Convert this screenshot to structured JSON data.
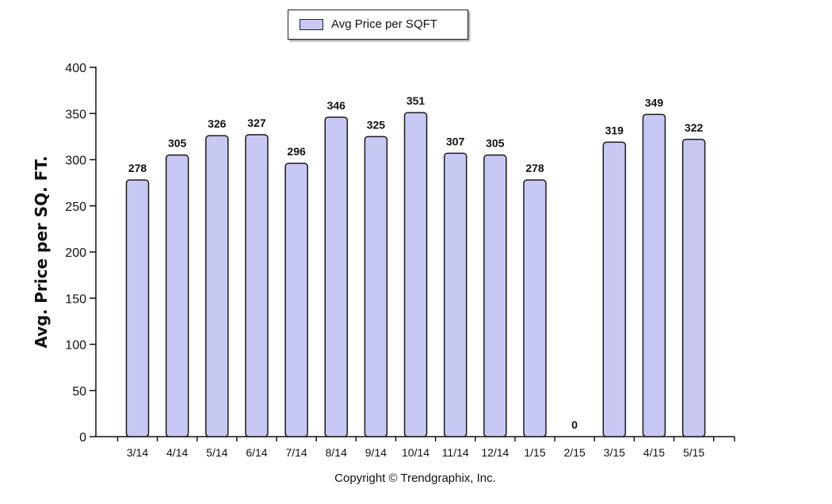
{
  "legend": {
    "label": "Avg Price per SQFT"
  },
  "footer": {
    "copyright": "Copyright © Trendgraphix, Inc."
  },
  "colors": {
    "bar_fill": "#c8c8f4",
    "bar_stroke": "#1a1a1a",
    "axis": "#111111"
  },
  "chart_data": {
    "type": "bar",
    "title": "",
    "xlabel": "",
    "ylabel": "Avg. Price per SQ. FT.",
    "categories": [
      "3/14",
      "4/14",
      "5/14",
      "6/14",
      "7/14",
      "8/14",
      "9/14",
      "10/14",
      "11/14",
      "12/14",
      "1/15",
      "2/15",
      "3/15",
      "4/15",
      "5/15"
    ],
    "series": [
      {
        "name": "Avg Price per SQFT",
        "values": [
          278,
          305,
          326,
          327,
          296,
          346,
          325,
          351,
          307,
          305,
          278,
          0,
          319,
          349,
          322
        ]
      }
    ],
    "ylim": [
      0,
      400
    ],
    "yticks": [
      0,
      50,
      100,
      150,
      200,
      250,
      300,
      350,
      400
    ],
    "grid": false,
    "legend_position": "top-center",
    "data_labels": true
  }
}
